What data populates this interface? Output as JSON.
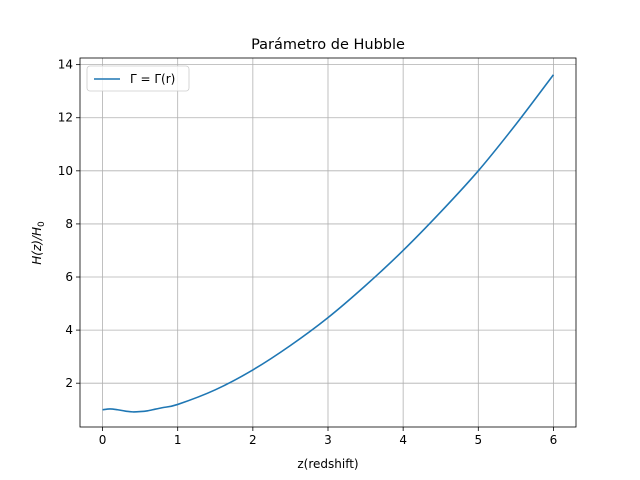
{
  "chart_data": {
    "type": "line",
    "title": "Parámetro de Hubble",
    "xlabel": "z(redshift)",
    "ylabel_main": "H(z)/H",
    "ylabel_sub": "0",
    "xlim": [
      -0.3,
      6.3
    ],
    "ylim": [
      0.35,
      14.25
    ],
    "xticks": [
      0,
      1,
      2,
      3,
      4,
      5,
      6
    ],
    "yticks": [
      2,
      4,
      6,
      8,
      10,
      12,
      14
    ],
    "grid": true,
    "legend_position": "top-left",
    "series": [
      {
        "name": "Γ = Γ(r)",
        "color": "#1f77b4",
        "x": [
          0,
          0.1,
          0.2,
          0.3,
          0.4,
          0.5,
          0.6,
          0.7,
          0.8,
          1.0,
          1.5,
          2.0,
          2.5,
          3.0,
          3.5,
          4.0,
          4.5,
          5.0,
          5.5,
          6.0
        ],
        "y": [
          1.0,
          1.03,
          1.0,
          0.95,
          0.92,
          0.93,
          0.96,
          1.02,
          1.08,
          1.2,
          1.75,
          2.5,
          3.42,
          4.47,
          5.68,
          7.0,
          8.45,
          10.0,
          11.75,
          13.62
        ]
      }
    ]
  }
}
